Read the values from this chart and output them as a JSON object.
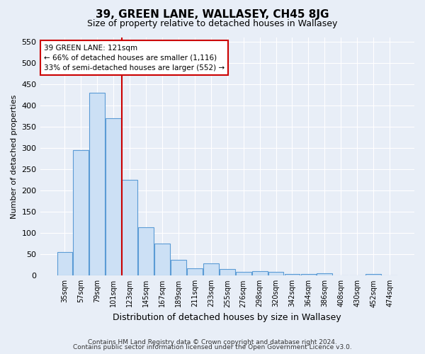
{
  "title": "39, GREEN LANE, WALLASEY, CH45 8JG",
  "subtitle": "Size of property relative to detached houses in Wallasey",
  "xlabel": "Distribution of detached houses by size in Wallasey",
  "ylabel": "Number of detached properties",
  "bar_labels": [
    "35sqm",
    "57sqm",
    "79sqm",
    "101sqm",
    "123sqm",
    "145sqm",
    "167sqm",
    "189sqm",
    "211sqm",
    "233sqm",
    "255sqm",
    "276sqm",
    "298sqm",
    "320sqm",
    "342sqm",
    "364sqm",
    "386sqm",
    "408sqm",
    "430sqm",
    "452sqm",
    "474sqm"
  ],
  "bar_values": [
    55,
    295,
    430,
    370,
    225,
    113,
    76,
    37,
    17,
    29,
    16,
    9,
    10,
    8,
    4,
    4,
    5,
    0,
    0,
    4,
    0
  ],
  "bar_color": "#cce0f5",
  "bar_edge_color": "#5b9bd5",
  "property_line_label": "39 GREEN LANE: 121sqm",
  "annotation_line1": "← 66% of detached houses are smaller (1,116)",
  "annotation_line2": "33% of semi-detached houses are larger (552) →",
  "annotation_box_color": "#ffffff",
  "annotation_box_edge_color": "#cc0000",
  "vline_color": "#cc0000",
  "vline_x_index": 4,
  "ylim": [
    0,
    560
  ],
  "yticks": [
    0,
    50,
    100,
    150,
    200,
    250,
    300,
    350,
    400,
    450,
    500,
    550
  ],
  "background_color": "#e8eef7",
  "footer1": "Contains HM Land Registry data © Crown copyright and database right 2024.",
  "footer2": "Contains public sector information licensed under the Open Government Licence v3.0."
}
